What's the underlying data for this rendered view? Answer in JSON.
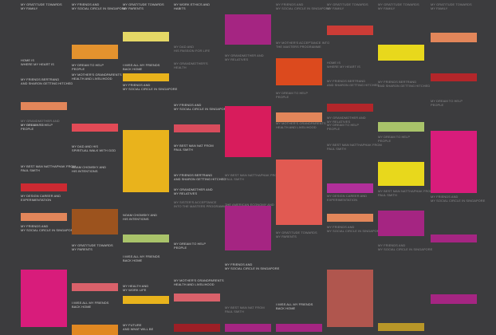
{
  "columns": [
    {
      "items": [
        {
          "type": "text",
          "text": "MY GRATITUDE TOWARDS\nMY FAMILY",
          "tone": "bright"
        },
        {
          "type": "text",
          "text": "HOME IS\nWHERE MY HEART IS",
          "tone": "bright"
        },
        {
          "type": "text",
          "text": "MY FRIENDS BERTRAND\nAND SHARON GETTING HITCHED",
          "tone": "bright"
        },
        {
          "type": "swatch",
          "color": "#e2865a"
        },
        {
          "type": "text",
          "text": "MY GRANDMOTHER AND\nMY RELATIVES",
          "tone": "dim"
        },
        {
          "type": "text",
          "text": "MY DREAM TO HELP\nPEOPLE",
          "tone": "bright"
        },
        {
          "type": "text",
          "text": "MY BEST MAN NATTHAPHAK FROM\nPAUL SMITH",
          "tone": "bright"
        },
        {
          "type": "swatch",
          "color": "#cc2a32"
        },
        {
          "type": "text",
          "text": "MY DESIGN CAREER AND\nEXPERIMENTATION",
          "tone": "bright"
        },
        {
          "type": "swatch",
          "color": "#e2865a"
        },
        {
          "type": "text",
          "text": "MY FRIENDS AND\nMY SOCIAL CIRCLE IN SINGAPORE",
          "tone": "bright"
        },
        {
          "type": "swatch",
          "color": "#d81c7b"
        }
      ]
    },
    {
      "items": [
        {
          "type": "text",
          "text": "MY FRIENDS AND\nMY SOCIAL CIRCLE IN SINGAPORE",
          "tone": "bright"
        },
        {
          "type": "swatch",
          "color": "#e3922e"
        },
        {
          "type": "text",
          "text": "MY DREAM TO HELP\nPEOPLE",
          "tone": "bright"
        },
        {
          "type": "text",
          "text": "MY MOTHER'S GRANDPARENTS\nHEALTH AND LIVELIHOOD",
          "tone": "bright"
        },
        {
          "type": "swatch",
          "color": "#e24a56"
        },
        {
          "type": "text",
          "text": "MY DAD AND HIS\nSPIRITUAL WALK WITH GOD",
          "tone": "bright"
        },
        {
          "type": "text",
          "text": "NOAM CHOMSKY AND\nHIS INTENTIONS",
          "tone": "bright"
        },
        {
          "type": "swatch",
          "color": "#9c531e"
        },
        {
          "type": "text",
          "text": "MY GRATITUDE TOWARDS\nMY PARENTS",
          "tone": "bright"
        },
        {
          "type": "swatch",
          "color": "#d9616a"
        },
        {
          "type": "text",
          "text": "I MISS ALL MY FRIENDS\nBACK HOME",
          "tone": "bright"
        },
        {
          "type": "swatch",
          "color": "#e08822"
        }
      ]
    },
    {
      "items": [
        {
          "type": "text",
          "text": "MY GRATITUDE TOWARDS\nMY PARENTS",
          "tone": "bright"
        },
        {
          "type": "swatch",
          "color": "#e5d866"
        },
        {
          "type": "text",
          "text": "I MISS ALL MY FRIENDS\nBACK HOME",
          "tone": "bright"
        },
        {
          "type": "swatch",
          "color": "#e9b31c"
        },
        {
          "type": "text",
          "text": "MY FRIENDS AND\nMY SOCIAL CIRCLE IN SINGAPORE",
          "tone": "bright"
        },
        {
          "type": "swatch",
          "color": "#e9b31c"
        },
        {
          "type": "text",
          "text": "NOAM CHOMSKY AND\nHIS INTENTIONS",
          "tone": "bright"
        },
        {
          "type": "swatch",
          "color": "#a9c36a"
        },
        {
          "type": "text",
          "text": "I MISS ALL MY FRIENDS\nBACK HOME",
          "tone": "bright"
        },
        {
          "type": "text",
          "text": "MY HEALTH AND\nMY WORK LIFE",
          "tone": "bright"
        },
        {
          "type": "swatch",
          "color": "#e9b31c"
        },
        {
          "type": "text",
          "text": "MY FUTURE\nAND WHAT WILL BE",
          "tone": "bright"
        }
      ]
    },
    {
      "items": [
        {
          "type": "text",
          "text": "MY WORK ETHICS AND\nHABITS",
          "tone": "bright"
        },
        {
          "type": "text",
          "text": "MY DAD AND\nHIS PASSION FOR LIFE",
          "tone": "dim"
        },
        {
          "type": "text",
          "text": "MY GRANDMOTHER'S\nHEALTH",
          "tone": "dim"
        },
        {
          "type": "text",
          "text": "MY FRIENDS AND\nMY SOCIAL CIRCLE IN SINGAPORE",
          "tone": "bright"
        },
        {
          "type": "swatch",
          "color": "#d84c5c"
        },
        {
          "type": "text",
          "text": "MY BEST MAN NAT FROM\nPAUL SMITH",
          "tone": "bright"
        },
        {
          "type": "text",
          "text": "MY FRIENDS BERTRAND\nAND SHARON GETTING HITCHED",
          "tone": "bright"
        },
        {
          "type": "text",
          "text": "MY GRANDMOTHER AND\nMY RELATIVES",
          "tone": "bright"
        },
        {
          "type": "text",
          "text": "MY SISTER'S ACCEPTANCE\nINTO THE MASTERS PROGRAMME",
          "tone": "dim"
        },
        {
          "type": "text",
          "text": "MY DREAM TO HELP\nPEOPLE",
          "tone": "bright"
        },
        {
          "type": "text",
          "text": "MY MOTHER'S GRANDPARENTS\nHEALTH AND LIVELIHOOD",
          "tone": "bright"
        },
        {
          "type": "swatch",
          "color": "#d9616a"
        },
        {
          "type": "swatch",
          "color": "#9d1f26"
        }
      ]
    },
    {
      "items": [
        {
          "type": "swatch",
          "color": "#a52582"
        },
        {
          "type": "text",
          "text": "MY GRANDMOTHER AND\nMY RELATIVES",
          "tone": "dim"
        },
        {
          "type": "swatch",
          "color": "#d81c5c"
        },
        {
          "type": "text",
          "text": "MY BEST MAN NATTHAPHAK FROM\nPAUL SMITH",
          "tone": "dim"
        },
        {
          "type": "text",
          "text": "THE AMERICAN ECONOMY AND\nTHE RECOVERY",
          "tone": "dim"
        },
        {
          "type": "swatch",
          "color": "#a52582"
        },
        {
          "type": "text",
          "text": "MY FRIENDS AND\nMY SOCIAL CIRCLE IN SINGAPORE",
          "tone": "bright"
        },
        {
          "type": "text",
          "text": "MY BEST MAN NAT FROM\nPAUL SMITH",
          "tone": "dim"
        },
        {
          "type": "swatch",
          "color": "#a52582"
        }
      ]
    },
    {
      "items": [
        {
          "type": "text",
          "text": "MY FRIENDS AND\nMY SOCIAL CIRCLE IN SINGAPORE",
          "tone": "dim"
        },
        {
          "type": "text",
          "text": "MY MOTHER'S ACCEPTANCE INTO\nTHE MASTERS PROGRAMME",
          "tone": "dim"
        },
        {
          "type": "swatch",
          "color": "#dc4a1e"
        },
        {
          "type": "text",
          "text": "MY DREAM TO HELP\nPEOPLE",
          "tone": "dim"
        },
        {
          "type": "swatch",
          "color": "#e2865a"
        },
        {
          "type": "text",
          "text": "MY MOTHER'S GRANDPARENTS\nHEALTH AND LIVELIHOOD",
          "tone": "dim"
        },
        {
          "type": "swatch",
          "color": "#e15a52"
        },
        {
          "type": "text",
          "text": "MY GRATITUDE TOWARDS\nMY PARENTS",
          "tone": "dim"
        },
        {
          "type": "text",
          "text": "I MISS ALL MY FRIENDS\nBACK HOME",
          "tone": "bright"
        },
        {
          "type": "swatch",
          "color": "#a52582"
        }
      ]
    },
    {
      "items": [
        {
          "type": "text",
          "text": "MY GRATITUDE TOWARDS\nMY FAMILY",
          "tone": "dim"
        },
        {
          "type": "swatch",
          "color": "#cc3c36"
        },
        {
          "type": "text",
          "text": "HOME IS\nWHERE MY HEART IS",
          "tone": "dim"
        },
        {
          "type": "text",
          "text": "MY FRIENDS BERTRAND\nAND SHARON GETTING HITCHED",
          "tone": "dim"
        },
        {
          "type": "swatch",
          "color": "#b3262a"
        },
        {
          "type": "text",
          "text": "MY GRANDMOTHER AND\nMY RELATIVES",
          "tone": "dim"
        },
        {
          "type": "text",
          "text": "MY DREAM TO HELP\nPEOPLE",
          "tone": "dim"
        },
        {
          "type": "text",
          "text": "MY BEST MAN NATTHAPHAK FROM\nPAUL SMITH",
          "tone": "dim"
        },
        {
          "type": "swatch",
          "color": "#b12f9a"
        },
        {
          "type": "text",
          "text": "MY DESIGN CAREER AND\nEXPERIMENTATION",
          "tone": "dim"
        },
        {
          "type": "swatch",
          "color": "#e2865a"
        },
        {
          "type": "text",
          "text": "MY FRIENDS AND\nMY SOCIAL CIRCLE IN SINGAPORE",
          "tone": "dim"
        },
        {
          "type": "swatch",
          "color": "#b0564e"
        }
      ]
    },
    {
      "items": [
        {
          "type": "text",
          "text": "MY GRATITUDE TOWARDS\nMY FAMILY",
          "tone": "dim"
        },
        {
          "type": "swatch",
          "color": "#e8d81c"
        },
        {
          "type": "text",
          "text": "MY FRIENDS BERTRAND\nAND SHARON GETTING HITCHED",
          "tone": "dim"
        },
        {
          "type": "swatch",
          "color": "#a9c36a"
        },
        {
          "type": "text",
          "text": "MY DREAM TO HELP\nPEOPLE",
          "tone": "dim"
        },
        {
          "type": "swatch",
          "color": "#e8d81c"
        },
        {
          "type": "text",
          "text": "MY BEST MAN NATTHAPHAK FROM\nPAUL SMITH",
          "tone": "dim"
        },
        {
          "type": "swatch",
          "color": "#a52582"
        },
        {
          "type": "text",
          "text": "MY FRIENDS AND\nMY SOCIAL CIRCLE IN SINGAPORE",
          "tone": "dim"
        },
        {
          "type": "swatch",
          "color": "#b89628"
        }
      ]
    },
    {
      "items": [
        {
          "type": "text",
          "text": "MY GRATITUDE TOWARDS\nMY FAMILY",
          "tone": "dim"
        },
        {
          "type": "swatch",
          "color": "#e2865a"
        },
        {
          "type": "swatch",
          "color": "#b3262a"
        },
        {
          "type": "text",
          "text": "MY DREAM TO HELP\nPEOPLE",
          "tone": "dim"
        },
        {
          "type": "swatch",
          "color": "#d81c7b"
        },
        {
          "type": "text",
          "text": "MY FRIENDS AND\nMY SOCIAL CIRCLE IN SINGAPORE",
          "tone": "dim"
        },
        {
          "type": "swatch",
          "color": "#a52582"
        },
        {
          "type": "swatch",
          "color": "#a52582"
        }
      ]
    }
  ]
}
